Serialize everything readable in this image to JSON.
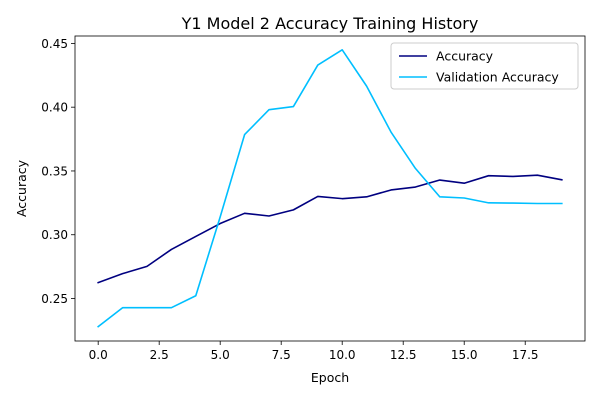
{
  "chart_data": {
    "type": "line",
    "title": "Y1 Model 2 Accuracy Training History",
    "xlabel": "Epoch",
    "ylabel": "Accuracy",
    "xlim": [
      -0.95,
      19.95
    ],
    "ylim": [
      0.2167,
      0.4558
    ],
    "x_ticks": [
      0.0,
      2.5,
      5.0,
      7.5,
      10.0,
      12.5,
      15.0,
      17.5
    ],
    "x_tick_labels": [
      "0.0",
      "2.5",
      "5.0",
      "7.5",
      "10.0",
      "12.5",
      "15.0",
      "17.5"
    ],
    "y_ticks": [
      0.25,
      0.3,
      0.35,
      0.4,
      0.45
    ],
    "y_tick_labels": [
      "0.25",
      "0.30",
      "0.35",
      "0.40",
      "0.45"
    ],
    "grid": false,
    "legend_position": "upper right",
    "x": [
      0,
      1,
      2,
      3,
      4,
      5,
      6,
      7,
      8,
      9,
      10,
      11,
      12,
      13,
      14,
      15,
      16,
      17,
      18,
      19
    ],
    "series": [
      {
        "name": "Accuracy",
        "color": "#000080",
        "values": [
          0.2625,
          0.2695,
          0.2752,
          0.2885,
          0.2987,
          0.3088,
          0.3168,
          0.3147,
          0.3195,
          0.33,
          0.3283,
          0.3297,
          0.3351,
          0.3374,
          0.3429,
          0.3404,
          0.3463,
          0.3457,
          0.3467,
          0.3431
        ]
      },
      {
        "name": "Validation Accuracy",
        "color": "#00bfff",
        "values": [
          0.228,
          0.2428,
          0.2428,
          0.2428,
          0.2522,
          0.314,
          0.3785,
          0.398,
          0.4005,
          0.433,
          0.445,
          0.4165,
          0.3805,
          0.352,
          0.3297,
          0.3288,
          0.325,
          0.3248,
          0.3245,
          0.3245
        ]
      }
    ]
  }
}
